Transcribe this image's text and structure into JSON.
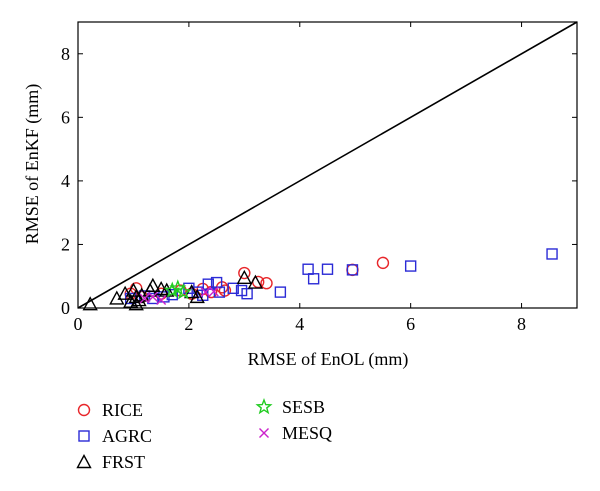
{
  "chart_data": {
    "type": "scatter",
    "title": "",
    "xlabel": "RMSE of EnOL (mm)",
    "ylabel": "RMSE of EnKF (mm)",
    "xlim": [
      0,
      9
    ],
    "ylim": [
      0,
      9
    ],
    "xticks": [
      0,
      2,
      4,
      6,
      8
    ],
    "yticks": [
      0,
      2,
      4,
      6,
      8
    ],
    "grid": false,
    "reference_line": {
      "x": [
        0,
        9
      ],
      "y": [
        0,
        9
      ],
      "color": "#000000"
    },
    "legend_position": "below",
    "series": [
      {
        "name": "RICE",
        "marker": "circle",
        "color": "#e8262a",
        "points": [
          [
            0.95,
            0.45
          ],
          [
            1.05,
            0.62
          ],
          [
            1.15,
            0.35
          ],
          [
            1.5,
            0.45
          ],
          [
            1.85,
            0.55
          ],
          [
            2.05,
            0.45
          ],
          [
            2.25,
            0.6
          ],
          [
            2.4,
            0.5
          ],
          [
            2.6,
            0.65
          ],
          [
            2.65,
            0.55
          ],
          [
            3.0,
            1.1
          ],
          [
            3.25,
            0.82
          ],
          [
            3.4,
            0.78
          ],
          [
            4.95,
            1.2
          ],
          [
            5.5,
            1.42
          ]
        ]
      },
      {
        "name": "AGRC",
        "marker": "square",
        "color": "#2b2bd6",
        "points": [
          [
            0.95,
            0.3
          ],
          [
            1.2,
            0.38
          ],
          [
            1.35,
            0.3
          ],
          [
            1.55,
            0.35
          ],
          [
            1.7,
            0.42
          ],
          [
            2.0,
            0.62
          ],
          [
            2.15,
            0.5
          ],
          [
            2.25,
            0.4
          ],
          [
            2.35,
            0.75
          ],
          [
            2.5,
            0.8
          ],
          [
            2.55,
            0.5
          ],
          [
            2.8,
            0.62
          ],
          [
            2.95,
            0.55
          ],
          [
            3.05,
            0.45
          ],
          [
            3.65,
            0.5
          ],
          [
            4.15,
            1.22
          ],
          [
            4.25,
            0.92
          ],
          [
            4.5,
            1.22
          ],
          [
            4.95,
            1.2
          ],
          [
            6.0,
            1.32
          ],
          [
            8.55,
            1.7
          ]
        ]
      },
      {
        "name": "FRST",
        "marker": "triangle",
        "color": "#000000",
        "points": [
          [
            0.22,
            0.12
          ],
          [
            0.7,
            0.3
          ],
          [
            0.85,
            0.45
          ],
          [
            0.95,
            0.2
          ],
          [
            1.0,
            0.55
          ],
          [
            1.05,
            0.35
          ],
          [
            1.05,
            0.12
          ],
          [
            1.1,
            0.25
          ],
          [
            1.15,
            0.4
          ],
          [
            1.3,
            0.55
          ],
          [
            1.35,
            0.7
          ],
          [
            1.5,
            0.6
          ],
          [
            1.6,
            0.55
          ],
          [
            2.05,
            0.5
          ],
          [
            2.15,
            0.35
          ],
          [
            3.0,
            0.95
          ],
          [
            3.2,
            0.8
          ]
        ]
      },
      {
        "name": "SESB",
        "marker": "star",
        "color": "#22cc22",
        "points": [
          [
            1.7,
            0.55
          ],
          [
            1.8,
            0.62
          ],
          [
            1.9,
            0.5
          ]
        ]
      },
      {
        "name": "MESQ",
        "marker": "x",
        "color": "#cc22cc",
        "points": [
          [
            1.2,
            0.3
          ],
          [
            1.35,
            0.35
          ],
          [
            1.5,
            0.25
          ],
          [
            2.3,
            0.5
          ],
          [
            2.45,
            0.52
          ]
        ]
      }
    ]
  }
}
